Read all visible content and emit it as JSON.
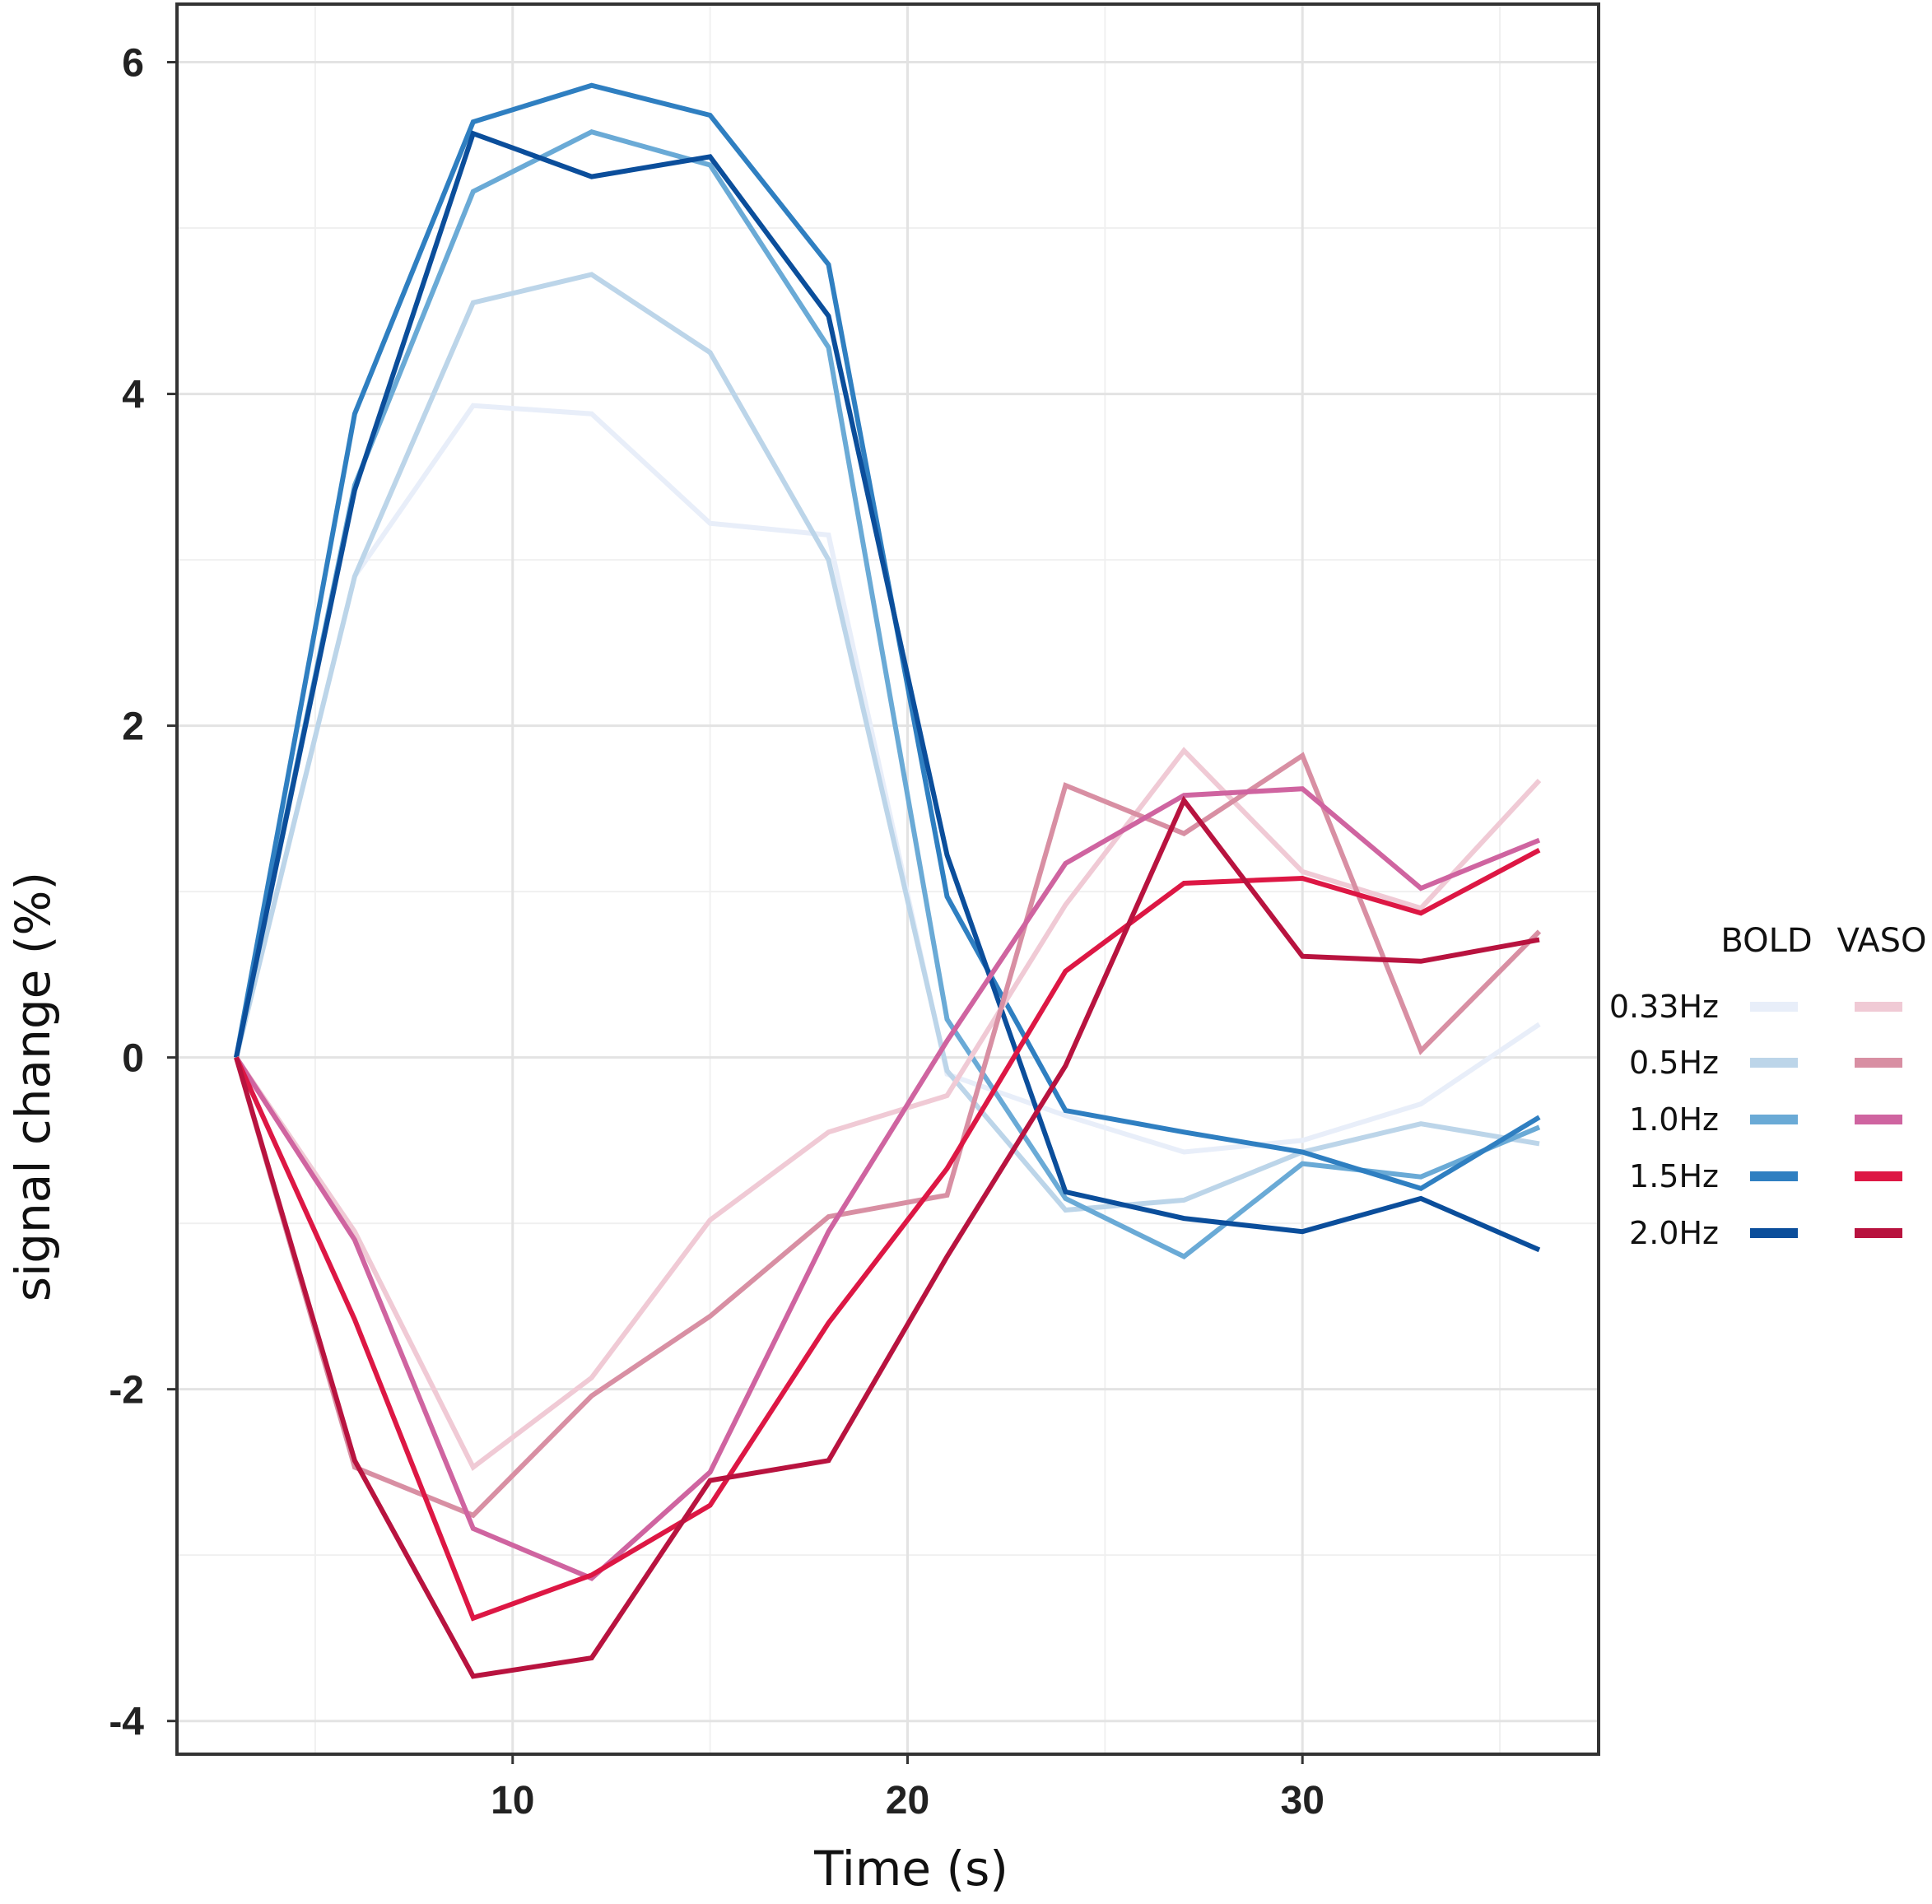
{
  "chart_data": {
    "type": "line",
    "title": "",
    "xlabel": "Time (s)",
    "ylabel": "signal change (%)",
    "xlim": [
      1.5,
      37.5
    ],
    "ylim": [
      -4.2,
      6.35
    ],
    "x_ticks": [
      10,
      20,
      30
    ],
    "x_tick_labels": [
      "10",
      "20",
      "30"
    ],
    "y_ticks": [
      -4,
      -2,
      0,
      2,
      4,
      6
    ],
    "y_tick_labels": [
      "-4",
      "-2",
      "0",
      "2",
      "4",
      "6"
    ],
    "grid": true,
    "legend": {
      "position": "right",
      "headers": [
        "BOLD",
        "VASO"
      ],
      "rows": [
        "0.33Hz",
        "0.5Hz",
        "1.0Hz",
        "1.5Hz",
        "2.0Hz"
      ]
    },
    "x": [
      3,
      6,
      9,
      12,
      15,
      18,
      21,
      24,
      27,
      30,
      33,
      36
    ],
    "series": [
      {
        "name": "BOLD 0.33Hz",
        "group": "BOLD",
        "freq": "0.33Hz",
        "color": "#e8eef9",
        "values": [
          0,
          2.9,
          3.93,
          3.88,
          3.22,
          3.15,
          -0.1,
          -0.35,
          -0.57,
          -0.5,
          -0.28,
          0.2
        ]
      },
      {
        "name": "BOLD 0.5Hz",
        "group": "BOLD",
        "freq": "0.5Hz",
        "color": "#bcd5e9",
        "values": [
          0,
          2.9,
          4.55,
          4.72,
          4.25,
          3.0,
          -0.08,
          -0.92,
          -0.86,
          -0.57,
          -0.4,
          -0.52
        ]
      },
      {
        "name": "BOLD 1.0Hz",
        "group": "BOLD",
        "freq": "1.0Hz",
        "color": "#6aaad6",
        "values": [
          0,
          3.45,
          5.22,
          5.58,
          5.38,
          4.28,
          0.23,
          -0.85,
          -1.2,
          -0.64,
          -0.72,
          -0.42
        ]
      },
      {
        "name": "BOLD 1.5Hz",
        "group": "BOLD",
        "freq": "1.5Hz",
        "color": "#2f7fc1",
        "values": [
          0,
          3.88,
          5.64,
          5.86,
          5.68,
          4.78,
          0.97,
          -0.32,
          -0.45,
          -0.57,
          -0.79,
          -0.36
        ]
      },
      {
        "name": "BOLD 2.0Hz",
        "group": "BOLD",
        "freq": "2.0Hz",
        "color": "#0b4e9b",
        "values": [
          0,
          3.42,
          5.57,
          5.31,
          5.43,
          4.47,
          1.22,
          -0.81,
          -0.97,
          -1.05,
          -0.85,
          -1.16
        ]
      },
      {
        "name": "VASO 0.33Hz",
        "group": "VASO",
        "freq": "0.33Hz",
        "color": "#f0cad5",
        "values": [
          0,
          -1.05,
          -2.47,
          -1.93,
          -0.98,
          -0.45,
          -0.23,
          0.92,
          1.85,
          1.12,
          0.9,
          1.67
        ]
      },
      {
        "name": "VASO 0.5Hz",
        "group": "VASO",
        "freq": "0.5Hz",
        "color": "#d88fa3",
        "values": [
          0,
          -2.47,
          -2.76,
          -2.04,
          -1.56,
          -0.96,
          -0.83,
          1.64,
          1.35,
          1.82,
          0.04,
          0.76
        ]
      },
      {
        "name": "VASO 1.0Hz",
        "group": "VASO",
        "freq": "1.0Hz",
        "color": "#cf64a0",
        "values": [
          0,
          -1.1,
          -2.84,
          -3.14,
          -2.5,
          -1.05,
          0.1,
          1.17,
          1.58,
          1.62,
          1.02,
          1.31
        ]
      },
      {
        "name": "VASO 1.5Hz",
        "group": "VASO",
        "freq": "1.5Hz",
        "color": "#dd1744",
        "values": [
          0,
          -1.58,
          -3.38,
          -3.12,
          -2.7,
          -1.6,
          -0.67,
          0.52,
          1.05,
          1.08,
          0.87,
          1.25
        ]
      },
      {
        "name": "VASO 2.0Hz",
        "group": "VASO",
        "freq": "2.0Hz",
        "color": "#b8133f",
        "values": [
          0,
          -2.43,
          -3.73,
          -3.62,
          -2.55,
          -2.43,
          -1.2,
          -0.05,
          1.55,
          0.61,
          0.58,
          0.71
        ]
      }
    ]
  }
}
